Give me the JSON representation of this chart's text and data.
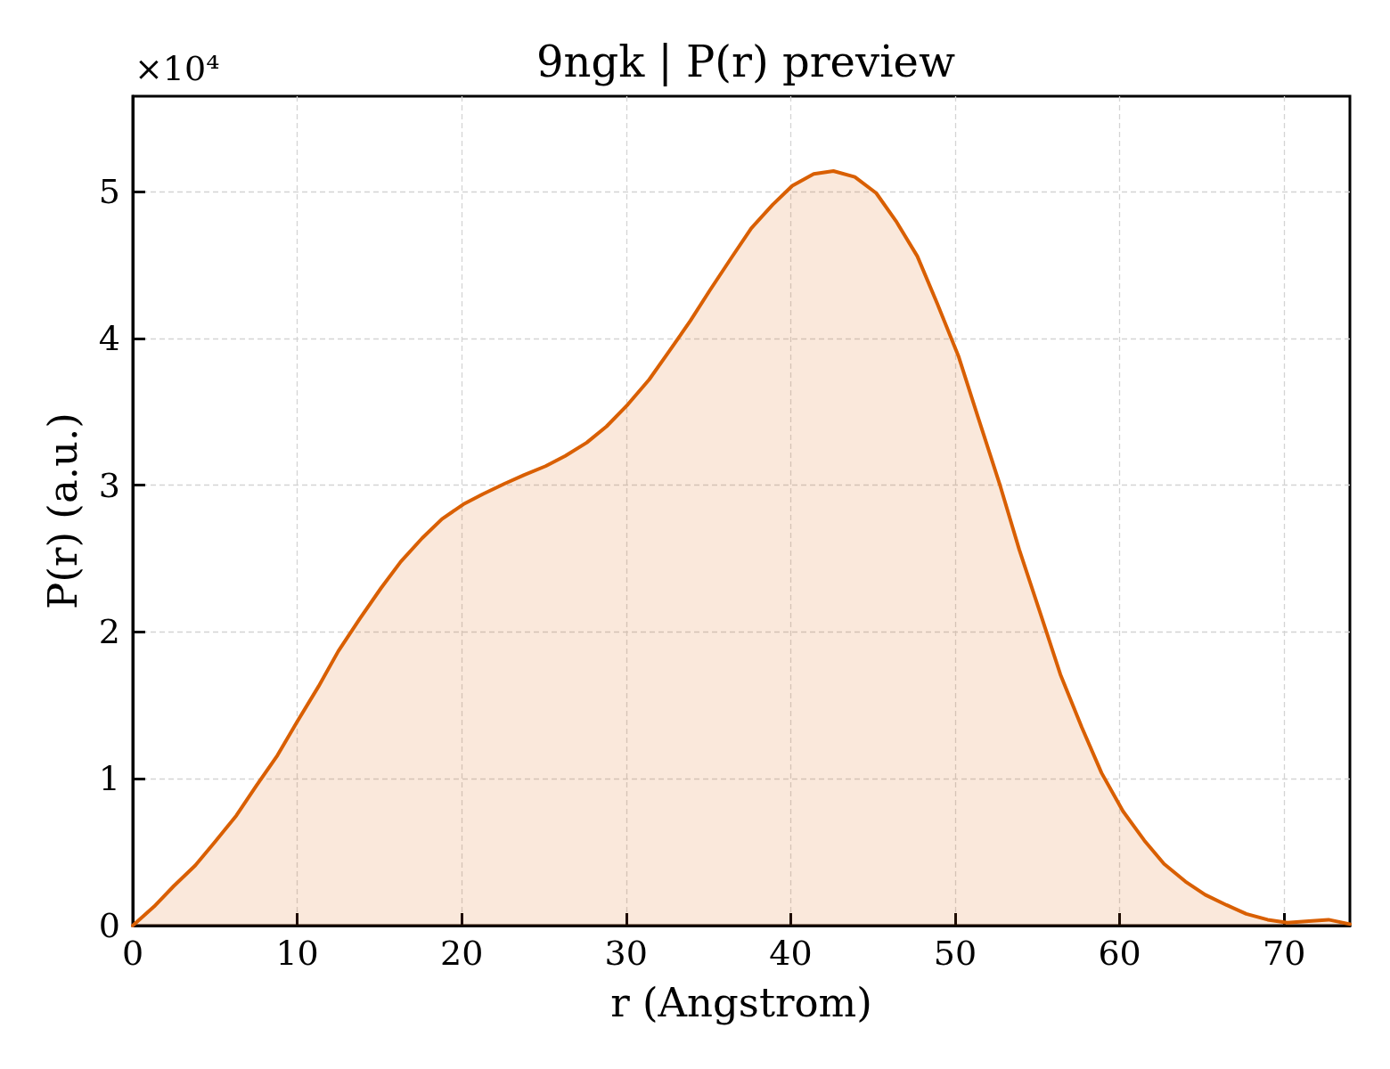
{
  "chart_data": {
    "type": "area",
    "title": "9ngk | P(r) preview",
    "xlabel": "r (Angstrom)",
    "ylabel": "P(r) (a.u.)",
    "annotations": [
      "×10⁴"
    ],
    "x": [
      0,
      1.3,
      2.5,
      3.8,
      5.0,
      6.3,
      7.5,
      8.8,
      10.0,
      11.3,
      12.5,
      13.8,
      15.1,
      16.3,
      17.6,
      18.8,
      20.1,
      21.3,
      22.6,
      23.8,
      25.1,
      26.3,
      27.6,
      28.8,
      30.1,
      31.4,
      32.6,
      33.9,
      35.1,
      36.4,
      37.6,
      38.9,
      40.1,
      41.4,
      42.6,
      43.9,
      45.2,
      46.4,
      47.7,
      48.9,
      50.2,
      51.4,
      52.7,
      53.9,
      55.2,
      56.4,
      57.7,
      58.9,
      60.2,
      61.5,
      62.7,
      64.0,
      65.2,
      66.5,
      67.7,
      69.0,
      70.2,
      71.5,
      72.7,
      74.0
    ],
    "series": [
      {
        "color": "#d95f02",
        "values": [
          0,
          0.13,
          0.27,
          0.41,
          0.57,
          0.75,
          0.95,
          1.16,
          1.39,
          1.63,
          1.87,
          2.09,
          2.3,
          2.48,
          2.64,
          2.77,
          2.87,
          2.94,
          3.01,
          3.07,
          3.13,
          3.2,
          3.29,
          3.4,
          3.55,
          3.72,
          3.91,
          4.12,
          4.33,
          4.55,
          4.75,
          4.91,
          5.04,
          5.12,
          5.14,
          5.1,
          4.99,
          4.8,
          4.56,
          4.24,
          3.88,
          3.46,
          3.01,
          2.56,
          2.12,
          1.71,
          1.35,
          1.04,
          0.78,
          0.58,
          0.42,
          0.3,
          0.21,
          0.14,
          0.08,
          0.04,
          0.02,
          0.03,
          0.04,
          0.01
        ]
      }
    ],
    "xlim": [
      0,
      74
    ],
    "xticks": [
      0,
      10,
      20,
      30,
      40,
      50,
      60,
      70
    ],
    "ylim": [
      0,
      5.65
    ],
    "yticks": [
      0,
      1,
      2,
      3,
      4,
      5
    ],
    "grid": true
  }
}
